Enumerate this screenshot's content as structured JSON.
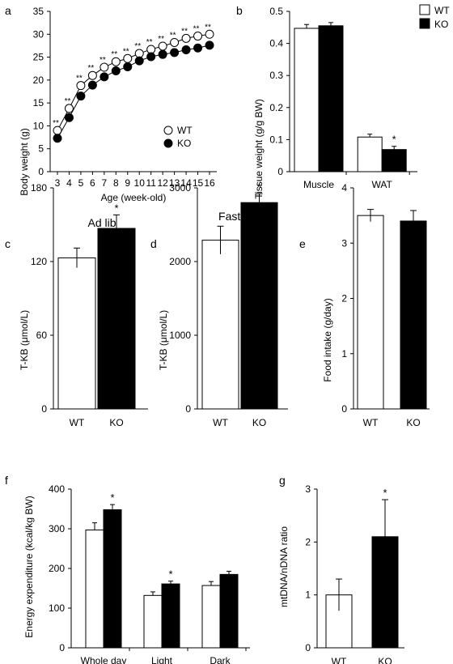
{
  "legend": {
    "wt": "WT",
    "ko": "KO"
  },
  "colors": {
    "wt": "#ffffff",
    "ko": "#000000",
    "stroke": "#000000"
  },
  "chart_data": [
    {
      "id": "a",
      "panel_label": "a",
      "type": "line",
      "title": "",
      "xlabel": "Age (week-old)",
      "ylabel": "Body weight (g)",
      "ylim": [
        0,
        35
      ],
      "yticks": [
        0,
        5,
        10,
        15,
        20,
        25,
        30,
        35
      ],
      "x": [
        3,
        4,
        5,
        6,
        7,
        8,
        9,
        10,
        11,
        12,
        13,
        14,
        15,
        16
      ],
      "series": [
        {
          "name": "WT",
          "values": [
            9.0,
            13.8,
            18.8,
            21.0,
            22.8,
            24.0,
            24.7,
            25.8,
            26.7,
            27.4,
            28.2,
            29.1,
            29.6,
            30.0
          ]
        },
        {
          "name": "KO",
          "values": [
            7.3,
            11.8,
            16.5,
            18.9,
            20.7,
            22.0,
            22.9,
            24.2,
            25.1,
            25.6,
            26.0,
            26.6,
            27.0,
            27.6
          ]
        }
      ],
      "annotations": [
        "**",
        "**",
        "**",
        "**",
        "**",
        "**",
        "**",
        "**",
        "**",
        "**",
        "**",
        "**",
        "**",
        "**"
      ],
      "legend_position": "bottom-right"
    },
    {
      "id": "b",
      "panel_label": "b",
      "type": "bar",
      "title": "",
      "xlabel": "",
      "ylabel": "Tissue weight (g/g BW)",
      "ylim": [
        0,
        0.5
      ],
      "yticks": [
        0,
        0.1,
        0.2,
        0.3,
        0.4,
        0.5
      ],
      "categories": [
        "Muscle",
        "WAT"
      ],
      "series": [
        {
          "name": "WT",
          "values": [
            0.447,
            0.108
          ],
          "errors": [
            0.012,
            0.009
          ]
        },
        {
          "name": "KO",
          "values": [
            0.455,
            0.069
          ],
          "errors": [
            0.01,
            0.01
          ]
        }
      ],
      "annotations": [
        "",
        "*"
      ],
      "legend_position": "top-right"
    },
    {
      "id": "c",
      "panel_label": "c",
      "type": "bar",
      "title": "Ad lib",
      "xlabel": "",
      "ylabel": "T-KB (μmol/L)",
      "ylim": [
        0,
        180
      ],
      "yticks": [
        0,
        60,
        120,
        180
      ],
      "categories": [
        "WT",
        "KO"
      ],
      "values": [
        123,
        147
      ],
      "errors": [
        8,
        11
      ],
      "annotations": [
        "",
        "*"
      ]
    },
    {
      "id": "d",
      "panel_label": "d",
      "type": "bar",
      "title": "Fasting",
      "xlabel": "",
      "ylabel": "T-KB (μmol/L)",
      "ylim": [
        0,
        3000
      ],
      "yticks": [
        0,
        1000,
        2000,
        3000
      ],
      "categories": [
        "WT",
        "KO"
      ],
      "values": [
        2290,
        2800
      ],
      "errors": [
        190,
        120
      ],
      "annotations": [
        "",
        "*"
      ]
    },
    {
      "id": "e",
      "panel_label": "e",
      "type": "bar",
      "title": "",
      "xlabel": "",
      "ylabel": "Food intake (g/day)",
      "ylim": [
        0,
        4
      ],
      "yticks": [
        0,
        1,
        2,
        3,
        4
      ],
      "categories": [
        "WT",
        "KO"
      ],
      "values": [
        3.5,
        3.4
      ],
      "errors": [
        0.11,
        0.19
      ],
      "annotations": [
        "",
        ""
      ]
    },
    {
      "id": "f",
      "panel_label": "f",
      "type": "bar",
      "title": "",
      "xlabel": "",
      "ylabel": "Energy expenditure (kcal/kg BW)",
      "ylim": [
        0,
        400
      ],
      "yticks": [
        0,
        100,
        200,
        300,
        400
      ],
      "categories": [
        "Whole day",
        "Light",
        "Dark"
      ],
      "series": [
        {
          "name": "WT",
          "values": [
            297,
            132,
            157
          ],
          "errors": [
            18,
            9,
            10
          ]
        },
        {
          "name": "KO",
          "values": [
            348,
            161,
            185
          ],
          "errors": [
            13,
            7,
            8
          ]
        }
      ],
      "annotations": [
        "*",
        "*",
        ""
      ]
    },
    {
      "id": "g",
      "panel_label": "g",
      "type": "bar",
      "title": "",
      "xlabel": "",
      "ylabel": "mtDNA/nDNA ratio",
      "ylim": [
        0,
        3
      ],
      "yticks": [
        0,
        1,
        2,
        3
      ],
      "categories": [
        "WT",
        "KO"
      ],
      "values": [
        1.0,
        2.1
      ],
      "errors": [
        0.3,
        0.7
      ],
      "annotations": [
        "",
        "*"
      ]
    }
  ]
}
